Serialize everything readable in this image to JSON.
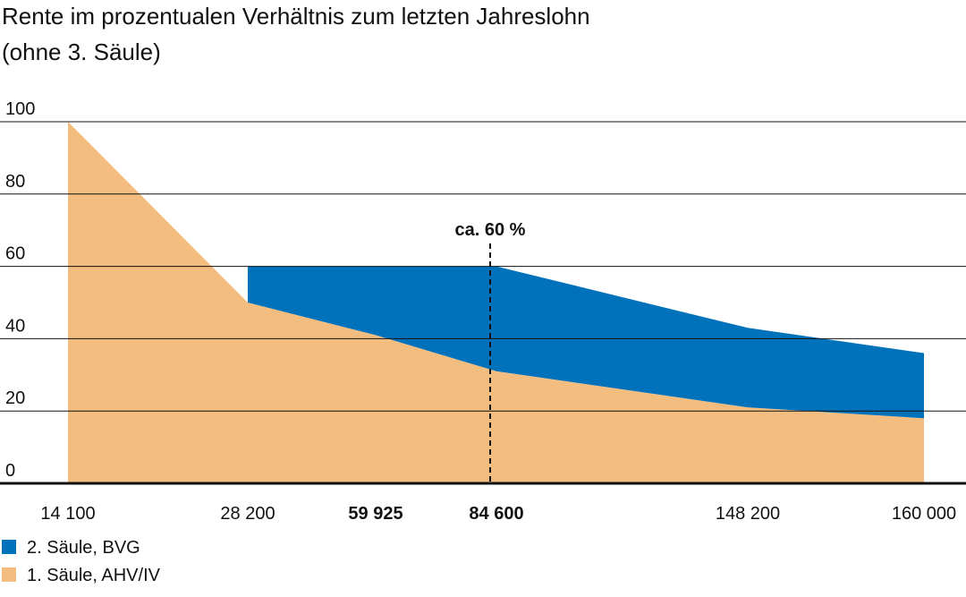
{
  "chart_data": {
    "type": "stacked_area",
    "title": "Rente im prozentualen Verhältnis zum letzten Jahreslohn",
    "subtitle": "(ohne 3. Säule)",
    "categories": [
      "14 100",
      "28 200",
      "59 925",
      "84 600",
      "148 200",
      "160 000"
    ],
    "series": [
      {
        "name": "1. Säule, AHV/IV",
        "color": "#f3bd7f",
        "values": [
          100,
          50,
          41,
          31,
          21,
          18
        ]
      },
      {
        "name": "2. Säule, BVG",
        "color": "#0072bb",
        "values": [
          null,
          10,
          19,
          29,
          22,
          18
        ]
      }
    ],
    "annotation": "ca. 60 %",
    "ylim": [
      0,
      100
    ],
    "yticks": [
      0,
      20,
      40,
      60,
      80,
      100
    ],
    "grid": true
  }
}
